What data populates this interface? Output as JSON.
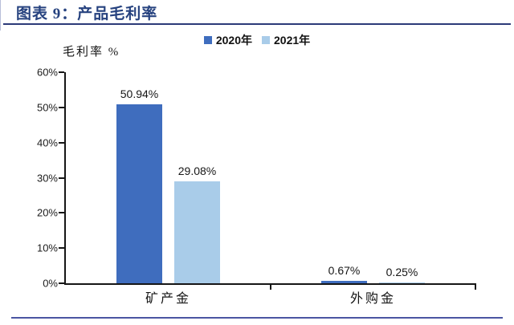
{
  "figure": {
    "title": "图表 9：产品毛利率"
  },
  "chart_data": {
    "type": "bar",
    "title": "图表 9：产品毛利率",
    "categories": [
      "矿产金",
      "外购金"
    ],
    "series": [
      {
        "name": "2020年",
        "color": "#3f6dbe",
        "values": [
          50.94,
          0.67
        ],
        "labels": [
          "50.94%",
          "0.67%"
        ]
      },
      {
        "name": "2021年",
        "color": "#a9cce9",
        "values": [
          29.08,
          0.25
        ],
        "labels": [
          "29.08%",
          "0.25%"
        ]
      }
    ],
    "xlabel": "",
    "ylabel": "毛利率 %",
    "ylim": [
      0,
      60
    ],
    "yticks": [
      "0%",
      "10%",
      "20%",
      "30%",
      "40%",
      "50%",
      "60%"
    ],
    "grid": false,
    "legend_position": "top-center"
  },
  "colors": {
    "title": "#26427f",
    "title_rule": "#2c3a78",
    "bottom_rule": "#4a55a2",
    "axis": "#161616",
    "bar_2020": "#3f6dbe",
    "bar_2021": "#a9cce9",
    "edge_artifact": "#9aa3c9"
  }
}
